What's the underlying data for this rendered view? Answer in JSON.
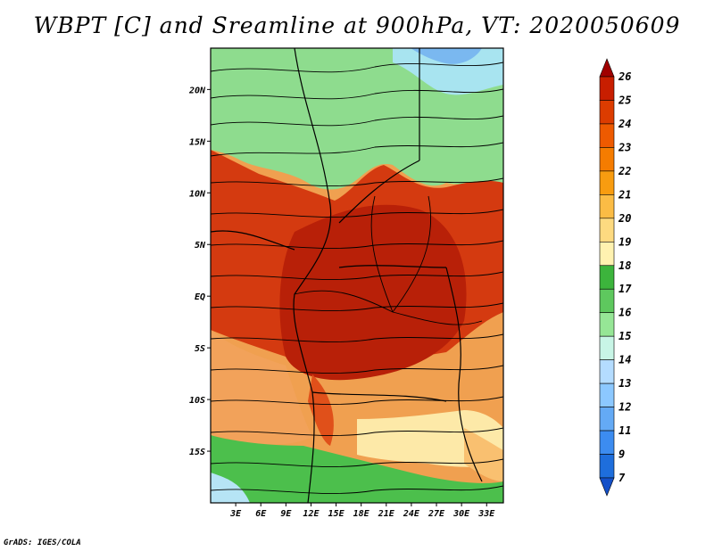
{
  "title": "WBPT [C] and Sreamline at 900hPa, VT: 2020050609",
  "credit": "GrADS: IGES/COLA",
  "map": {
    "lon_range": [
      0,
      35
    ],
    "lat_range": [
      -20,
      24
    ],
    "x_ticks": [
      "3E",
      "6E",
      "9E",
      "12E",
      "15E",
      "18E",
      "21E",
      "24E",
      "27E",
      "30E",
      "33E"
    ],
    "x_tick_values": [
      3,
      6,
      9,
      12,
      15,
      18,
      21,
      24,
      27,
      30,
      33
    ],
    "y_ticks": [
      "20N",
      "15N",
      "10N",
      "5N",
      "EQ",
      "5S",
      "10S",
      "15S"
    ],
    "y_tick_values": [
      20,
      15,
      10,
      5,
      0,
      -5,
      -10,
      -15
    ]
  },
  "colorbar": {
    "labels": [
      "26",
      "25",
      "24",
      "23",
      "22",
      "21",
      "20",
      "19",
      "18",
      "17",
      "16",
      "15",
      "14",
      "13",
      "12",
      "11",
      "9",
      "7"
    ],
    "colors": [
      "#a00000",
      "#c81e00",
      "#dc3c00",
      "#ee5a00",
      "#f57c00",
      "#f89c10",
      "#fbbc45",
      "#fdda80",
      "#fff2b0",
      "#3cb43c",
      "#5ec85e",
      "#96e696",
      "#c8f5e6",
      "#b4dcff",
      "#8cc8ff",
      "#64aaf5",
      "#3c8cf0",
      "#1e6edc",
      "#1450c8"
    ]
  }
}
